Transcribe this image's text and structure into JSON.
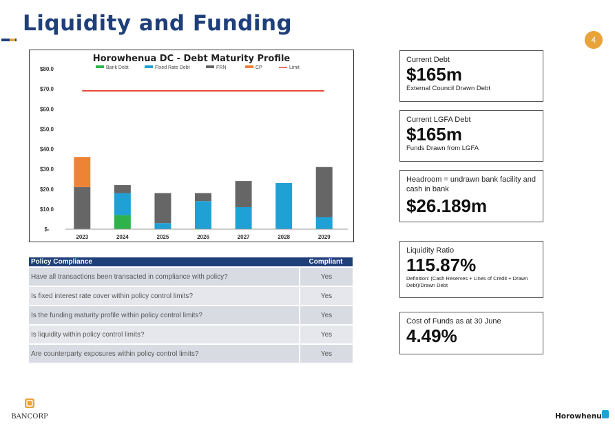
{
  "page": {
    "title": "Liquidity and Funding",
    "page_number": "4"
  },
  "chart_data": {
    "type": "bar",
    "stacked": true,
    "title": "Horowhenua DC - Debt Maturity Profile",
    "legend_position": "top",
    "categories": [
      "2023",
      "2024",
      "2025",
      "2026",
      "2027",
      "2028",
      "2029"
    ],
    "series": [
      {
        "name": "Bank Debt",
        "color": "#2db34a",
        "values": [
          0,
          7,
          0,
          0,
          0,
          0,
          0
        ]
      },
      {
        "name": "Fixed Rate Debt",
        "color": "#1fa1d6",
        "values": [
          0,
          11,
          3,
          14,
          11,
          23,
          6
        ]
      },
      {
        "name": "FRN",
        "color": "#666666",
        "values": [
          21,
          4,
          15,
          4,
          13,
          0,
          25
        ]
      },
      {
        "name": "CP",
        "color": "#ee8335",
        "values": [
          15,
          0,
          0,
          0,
          0,
          0,
          0
        ]
      }
    ],
    "limit": {
      "name": "Limit",
      "color": "#e8473a",
      "value": 69
    },
    "ylim": [
      0,
      80
    ],
    "yticks": [
      0,
      10,
      20,
      30,
      40,
      50,
      60,
      70,
      80
    ],
    "ytick_labels": [
      "$-",
      "$10.0",
      "$20.0",
      "$30.0",
      "$40.0",
      "$50.0",
      "$60.0",
      "$70.0",
      "$80.0"
    ],
    "grid": false
  },
  "policy": {
    "header_question": "Policy Compliance",
    "header_status": "Compliant",
    "rows": [
      {
        "question": "Have all transactions been transacted in compliance with policy?",
        "status": "Yes"
      },
      {
        "question": "Is fixed interest rate cover within policy control limits?",
        "status": "Yes"
      },
      {
        "question": "Is the funding maturity profile within policy control limits?",
        "status": "Yes"
      },
      {
        "question": "Is liquidity within policy control limits?",
        "status": "Yes"
      },
      {
        "question": "Are counterparty exposures within policy control limits?",
        "status": "Yes"
      }
    ]
  },
  "cards": {
    "current_debt": {
      "label": "Current Debt",
      "value": "$165m",
      "sub": "External Council Drawn Debt"
    },
    "lgfa_debt": {
      "label": "Current LGFA Debt",
      "value": "$165m",
      "sub": "Funds Drawn from LGFA"
    },
    "headroom": {
      "label": "Headroom = undrawn bank facility and cash in bank",
      "value": "$26.189m"
    },
    "liquidity": {
      "label": "Liquidity Ratio",
      "value": "115.87%",
      "sub": "Definition: (Cash Reserves + Lines of Credit + Drawn Debt)/Drawn Debt"
    },
    "cost_of_funds": {
      "label": "Cost of Funds as at 30 June",
      "value": "4.49%"
    }
  },
  "logos": {
    "left": "BANCORP",
    "right": "Horowhenua"
  }
}
